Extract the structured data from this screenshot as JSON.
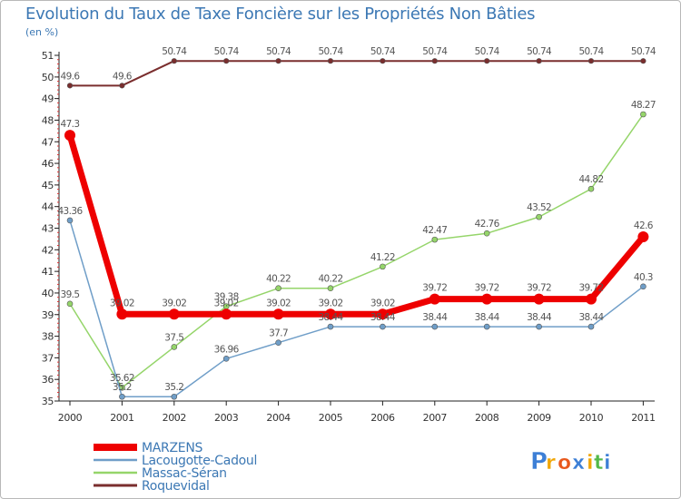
{
  "header": {
    "title": "Evolution du Taux de Taxe Foncière sur les Propriétés Non Bâties",
    "unit": "(en %)"
  },
  "brand": {
    "letters": [
      "P",
      "r",
      "o",
      "x",
      "i",
      "t",
      "i"
    ],
    "letter_colors": [
      "#3d7fd6",
      "#f0a500",
      "#e8581c",
      "#3d7fd6",
      "#f0a500",
      "#53b848",
      "#3d7fd6"
    ]
  },
  "chart_data": {
    "type": "line",
    "title": "Evolution du Taux de Taxe Foncière sur les Propriétés Non Bâties",
    "ylabel": "(en %)",
    "xlabel": "",
    "categories": [
      "2000",
      "2001",
      "2002",
      "2003",
      "2004",
      "2005",
      "2006",
      "2007",
      "2008",
      "2009",
      "2010",
      "2011"
    ],
    "ylim": [
      35,
      51
    ],
    "yticks": [
      35,
      36,
      37,
      38,
      39,
      40,
      41,
      42,
      43,
      44,
      45,
      46,
      47,
      48,
      49,
      50,
      51
    ],
    "grid": false,
    "legend": "bottom-left",
    "series": [
      {
        "name": "Roquevidal",
        "color": "#7a2e2e",
        "width": 2,
        "marker": 2.8,
        "values": [
          49.6,
          49.6,
          50.74,
          50.74,
          50.74,
          50.74,
          50.74,
          50.74,
          50.74,
          50.74,
          50.74,
          50.74
        ],
        "labels": [
          "49.6",
          "49.6",
          "50.74",
          "50.74",
          "50.74",
          "50.74",
          "50.74",
          "50.74",
          "50.74",
          "50.74",
          "50.74",
          "50.74"
        ]
      },
      {
        "name": "Massac-Séran",
        "color": "#95d56a",
        "width": 1.5,
        "marker": 3,
        "values": [
          39.5,
          35.62,
          37.5,
          39.38,
          40.22,
          40.22,
          41.22,
          42.47,
          42.76,
          43.52,
          44.82,
          48.27
        ],
        "labels": [
          "39.5",
          "35.62",
          "37.5",
          "39.38",
          "40.22",
          "40.22",
          "41.22",
          "42.47",
          "42.76",
          "43.52",
          "44.82",
          "48.27"
        ]
      },
      {
        "name": "Lacougotte-Cadoul",
        "color": "#6f9ec8",
        "width": 1.5,
        "marker": 3,
        "values": [
          43.36,
          35.2,
          35.2,
          36.96,
          37.7,
          38.44,
          38.44,
          38.44,
          38.44,
          38.44,
          38.44,
          40.3
        ],
        "labels": [
          "43.36",
          "35.2",
          "35.2",
          "36.96",
          "37.7",
          "38.44",
          "38.44",
          "38.44",
          "38.44",
          "38.44",
          "38.44",
          "40.3"
        ]
      },
      {
        "name": "MARZENS",
        "color": "#ee0000",
        "width": 7,
        "marker": 6,
        "values": [
          47.3,
          39.02,
          39.02,
          39.02,
          39.02,
          39.02,
          39.02,
          39.72,
          39.72,
          39.72,
          39.72,
          42.6
        ],
        "labels": [
          "47.3",
          "39.02",
          "39.02",
          "39.02",
          "39.02",
          "39.02",
          "39.02",
          "39.72",
          "39.72",
          "39.72",
          "39.72",
          "42.6"
        ]
      }
    ]
  }
}
